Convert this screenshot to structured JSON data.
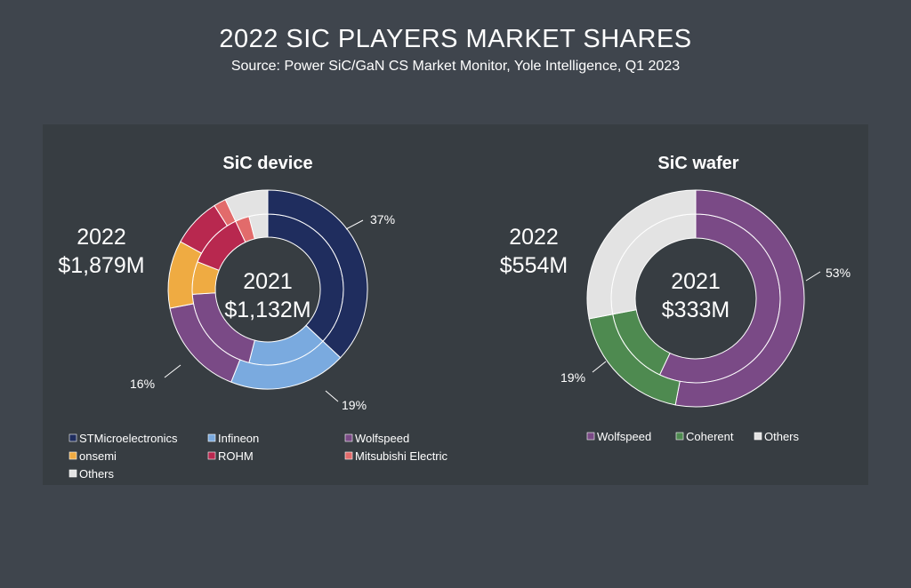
{
  "header": {
    "title": "2022 SIC PLAYERS MARKET SHARES",
    "subtitle": "Source: Power SiC/GaN CS Market Monitor, Yole Intelligence, Q1 2023"
  },
  "chart_data": [
    {
      "type": "donut",
      "title": "SiC device",
      "inner_label": [
        "2021",
        "$1,132M"
      ],
      "outer_label": [
        "2022",
        "$1,879M"
      ],
      "rings": [
        "2021",
        "2022"
      ],
      "legend_placement": "bottom",
      "series": [
        {
          "name": "STMicroelectronics",
          "color": "#1f2d5e",
          "values_2021": 37,
          "values_2022": 37
        },
        {
          "name": "Infineon",
          "color": "#7aaadf",
          "values_2021": 17,
          "values_2022": 19
        },
        {
          "name": "Wolfspeed",
          "color": "#7a4a86",
          "values_2021": 20,
          "values_2022": 16
        },
        {
          "name": "onsemi",
          "color": "#efab42",
          "values_2021": 7,
          "values_2022": 11
        },
        {
          "name": "ROHM",
          "color": "#b8284f",
          "values_2021": 12,
          "values_2022": 8
        },
        {
          "name": "Mitsubishi Electric",
          "color": "#e26b6b",
          "values_2021": 3,
          "values_2022": 2
        },
        {
          "name": "Others",
          "color": "#e3e3e3",
          "values_2021": 4,
          "values_2022": 7
        }
      ],
      "data_labels": [
        "37%",
        "19%",
        "16%"
      ]
    },
    {
      "type": "donut",
      "title": "SiC wafer",
      "inner_label": [
        "2021",
        "$333M"
      ],
      "outer_label": [
        "2022",
        "$554M"
      ],
      "rings": [
        "2021",
        "2022"
      ],
      "legend_placement": "bottom",
      "series": [
        {
          "name": "Wolfspeed",
          "color": "#7a4a86",
          "values_2021": 57,
          "values_2022": 53
        },
        {
          "name": "Coherent",
          "color": "#4e8a50",
          "values_2021": 15,
          "values_2022": 19
        },
        {
          "name": "Others",
          "color": "#e3e3e3",
          "values_2021": 28,
          "values_2022": 28
        }
      ],
      "data_labels": [
        "53%",
        "19%"
      ]
    }
  ]
}
